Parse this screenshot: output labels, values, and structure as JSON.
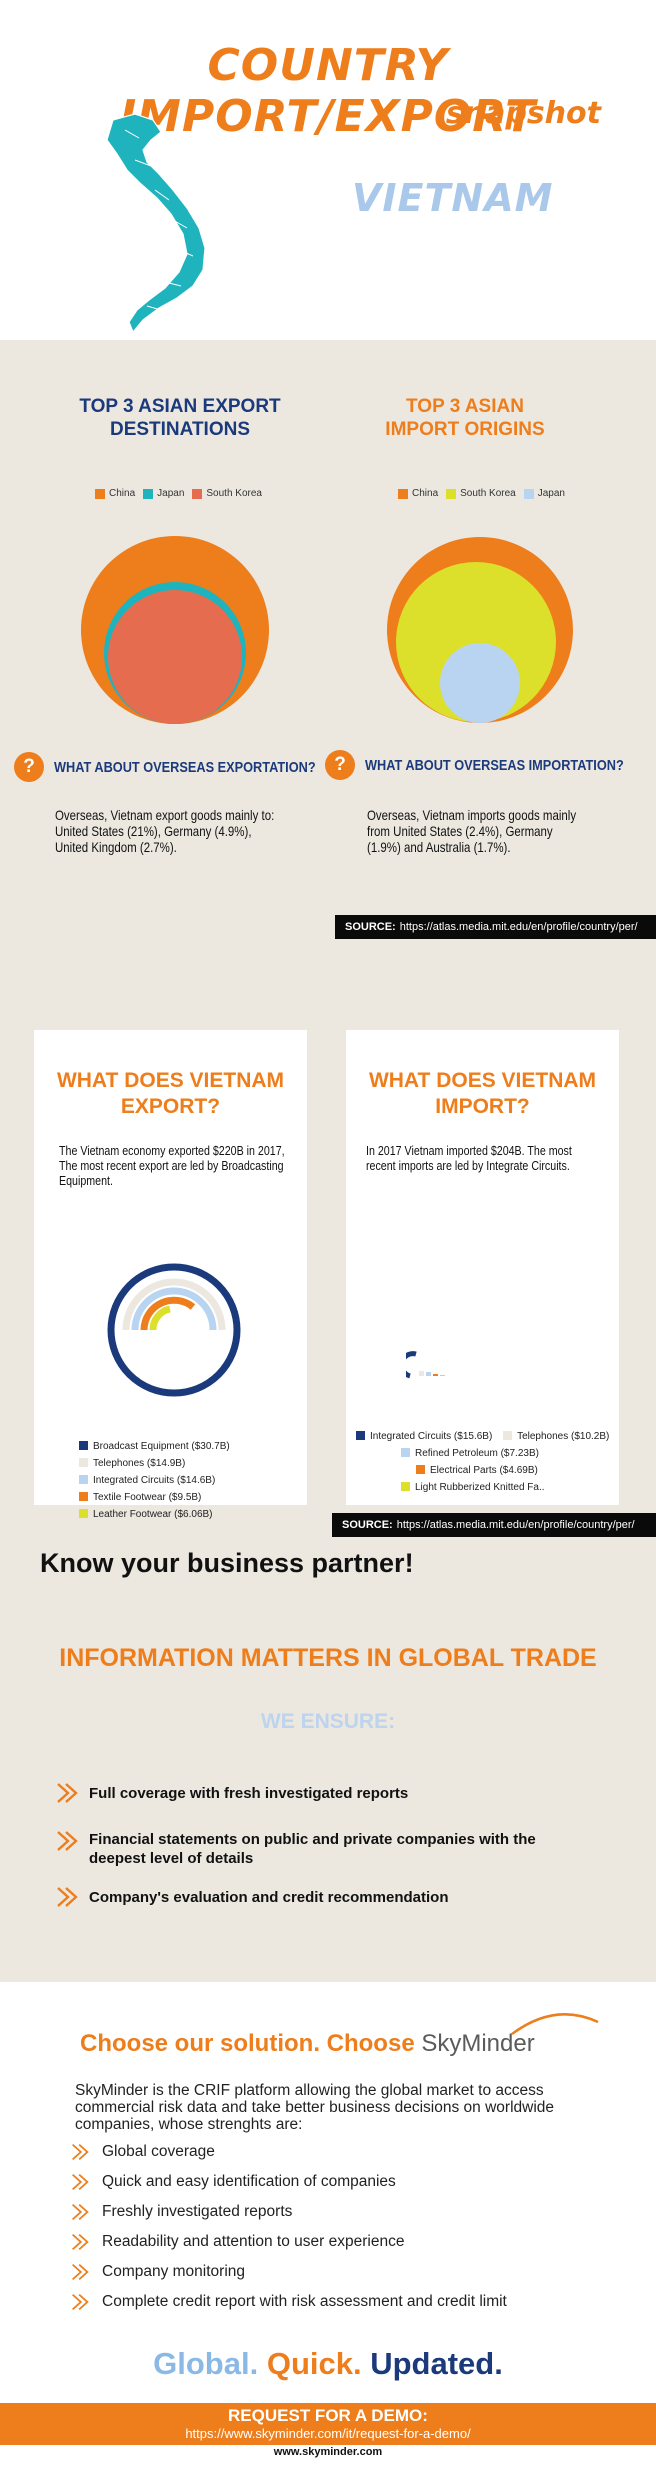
{
  "header": {
    "title_line1": "COUNTRY IMPORT/EXPORT",
    "title_line2": "snapshot",
    "country": "VIETNAM"
  },
  "colors": {
    "orange": "#ee7d1b",
    "navy": "#1b3a7c",
    "light_blue": "#a9c8ea",
    "teal": "#1fb3be",
    "beige": "#ece8e0"
  },
  "export_section": {
    "heading": "TOP 3 ASIAN EXPORT DESTINATIONS",
    "legend": [
      {
        "label": "China",
        "color": "#ee7d1b"
      },
      {
        "label": "Japan",
        "color": "#1fb3be"
      },
      {
        "label": "South Korea",
        "color": "#e66c4f"
      }
    ],
    "question": "WHAT ABOUT OVERSEAS EXPORTATION?",
    "text": "Overseas, Vietnam export goods mainly to:  United States (21%), Germany (4.9%), United Kingdom (2.7%)."
  },
  "import_section": {
    "heading": "TOP 3 ASIAN IMPORT ORIGINS",
    "legend": [
      {
        "label": "China",
        "color": "#ee7d1b"
      },
      {
        "label": "South Korea",
        "color": "#dde02a"
      },
      {
        "label": "Japan",
        "color": "#b9d4f0"
      }
    ],
    "question": "WHAT ABOUT OVERSEAS IMPORTATION?",
    "text": "Overseas, Vietnam imports goods mainly  from United States (2.4%), Germany (1.9%) and Australia (1.7%)."
  },
  "source1": {
    "label": "SOURCE:",
    "url": "https://atlas.media.mit.edu/en/profile/country/per/"
  },
  "export_card": {
    "title": "WHAT DOES VIETNAM EXPORT?",
    "text": "The Vietnam economy exported $220B in 2017, The most recent export are led by Broadcasting Equipment.",
    "legend": [
      {
        "label": "Broadcast Equipment ($30.7B)",
        "color": "#1b3a7c"
      },
      {
        "label": "Telephones ($14.9B)",
        "color": "#ece8e0"
      },
      {
        "label": "Integrated Circuits ($14.6B)",
        "color": "#b9d4f0"
      },
      {
        "label": "Textile Footwear ($9.5B)",
        "color": "#ee7d1b"
      },
      {
        "label": "Leather Footwear ($6.06B)",
        "color": "#dde02a"
      }
    ]
  },
  "import_card": {
    "title": "WHAT DOES VIETNAM IMPORT?",
    "text": "In 2017 Vietnam imported $204B. The most recent imports are led by Integrate Circuits.",
    "legend": [
      {
        "label": "Integrated Circuits ($15.6B)",
        "color": "#1b3a7c"
      },
      {
        "label": "Telephones ($10.2B)",
        "color": "#ece8e0"
      },
      {
        "label": "Refined Petroleum ($7.23B)",
        "color": "#b9d4f0"
      },
      {
        "label": "Electrical Parts ($4.69B)",
        "color": "#ee7d1b"
      },
      {
        "label": "Light Rubberized Knitted Fa..",
        "color": "#dde02a"
      }
    ]
  },
  "source2": {
    "label": "SOURCE:",
    "url": "https://atlas.media.mit.edu/en/profile/country/per/"
  },
  "trade": {
    "know": "Know your business partner!",
    "info": "INFORMATION MATTERS IN GLOBAL TRADE",
    "ensure": "WE ENSURE:",
    "bullets": [
      "Full coverage with fresh investigated reports",
      "Financial statements on public and private companies with the deepest level of details",
      "Company's evaluation and credit recommendation"
    ]
  },
  "solution": {
    "choose": "Choose our solution. Choose",
    "brand": "SkyMinder",
    "description": "SkyMinder is the CRIF platform allowing the global market to access commercial risk data and take better business decisions on worldwide companies, whose strenghts are:",
    "features": [
      "Global coverage",
      "Quick and easy identification of companies",
      "Freshly investigated reports",
      "Readability and attention to user experience",
      "Company monitoring",
      "Complete credit report with risk assessment and credit limit"
    ]
  },
  "slogan": {
    "w1": "Global.",
    "w2": "Quick.",
    "w3": "Updated."
  },
  "demo": {
    "label": "REQUEST FOR A DEMO:",
    "url": "https://www.skyminder.com/it/request-for-a-demo/"
  },
  "footer": {
    "site": "www.skyminder.com"
  }
}
